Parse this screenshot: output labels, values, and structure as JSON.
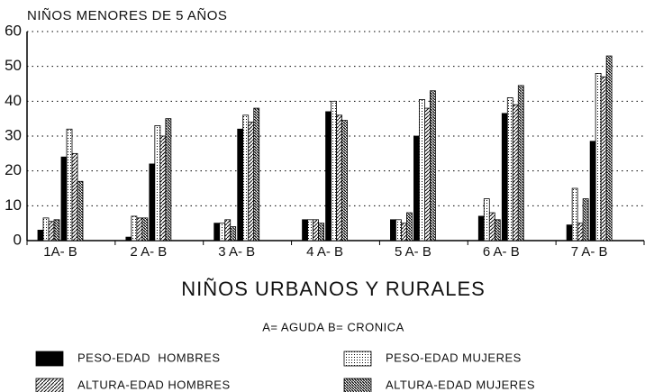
{
  "chart_data": {
    "type": "bar",
    "title": "NIÑOS MENORES DE 5 AÑOS",
    "x_label": "NIÑOS URBANOS Y RURALES",
    "annotation": "A= AGUDA B= CRONICA",
    "categories": [
      "1A- B",
      null,
      "2 A- B",
      null,
      "3 A- B",
      null,
      "4 A- B",
      null,
      "5 A- B",
      null,
      "6 A- B",
      null,
      "7 A- B",
      null
    ],
    "series": [
      {
        "name": "PESO-EDAD  HOMBRES",
        "color": "#000000",
        "pattern": "solid",
        "values": [
          3,
          24,
          1,
          22,
          5,
          32,
          6,
          37,
          6,
          30,
          7,
          36.5,
          4.5,
          28.5
        ]
      },
      {
        "name": "PESO-EDAD MUJERES",
        "color": "#000000",
        "pattern": "dots",
        "values": [
          6.5,
          32,
          7,
          33,
          5,
          36,
          6,
          40,
          6,
          40.5,
          12,
          41,
          15,
          48
        ]
      },
      {
        "name": "ALTURA-EDAD HOMBRES",
        "color": "#000000",
        "pattern": "hatch",
        "values": [
          5.5,
          25,
          6.5,
          30,
          6,
          34,
          6,
          36,
          5,
          38,
          8,
          39,
          5,
          47
        ]
      },
      {
        "name": "ALTURA-EDAD MUJERES",
        "color": "#000000",
        "pattern": "crosshatch",
        "values": [
          6,
          17,
          6.5,
          35,
          4,
          38,
          5,
          34.5,
          8,
          43,
          6,
          44.5,
          12,
          53
        ]
      }
    ],
    "ylim": [
      0,
      60
    ],
    "yticks": [
      0,
      10,
      20,
      30,
      40,
      50,
      60
    ],
    "grid": true
  }
}
